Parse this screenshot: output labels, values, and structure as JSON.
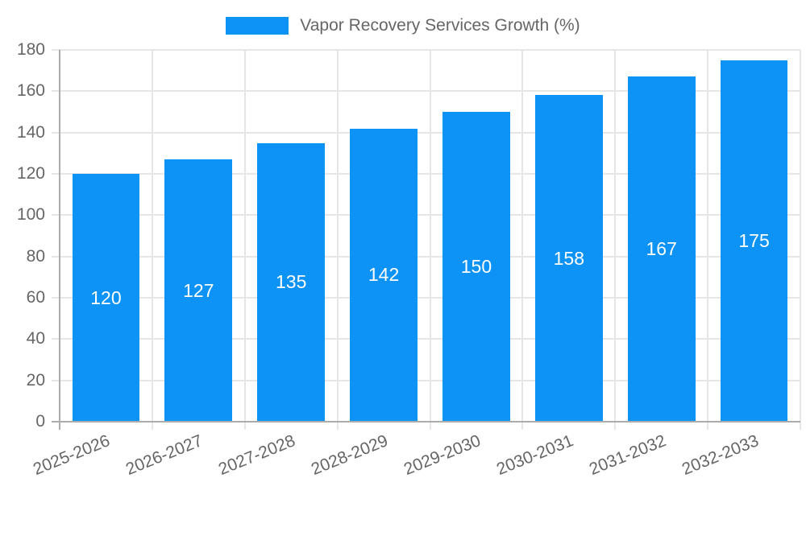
{
  "legend": {
    "label": "Vapor Recovery Services Growth (%)"
  },
  "chart_data": {
    "type": "bar",
    "title": "",
    "legend_label": "Vapor Recovery Services Growth (%)",
    "legend_position": "top",
    "categories": [
      "2025-2026",
      "2026-2027",
      "2027-2028",
      "2028-2029",
      "2029-2030",
      "2030-2031",
      "2031-2032",
      "2032-2033"
    ],
    "values": [
      120,
      127,
      135,
      142,
      150,
      158,
      167,
      175
    ],
    "bar_value_labels": [
      "120",
      "127",
      "135",
      "142",
      "150",
      "158",
      "167",
      "175"
    ],
    "xlabel": "",
    "ylabel": "",
    "ylim": [
      0,
      180
    ],
    "yticks": [
      0,
      20,
      40,
      60,
      80,
      100,
      120,
      140,
      160,
      180
    ],
    "grid": true,
    "colors": {
      "bar": "#0D92F5",
      "bar_value_text": "#FFFFFF",
      "axis_text": "#666666",
      "grid_line": "#E6E6E6",
      "axis_line": "#ACACAC",
      "background": "#FFFFFF"
    }
  }
}
